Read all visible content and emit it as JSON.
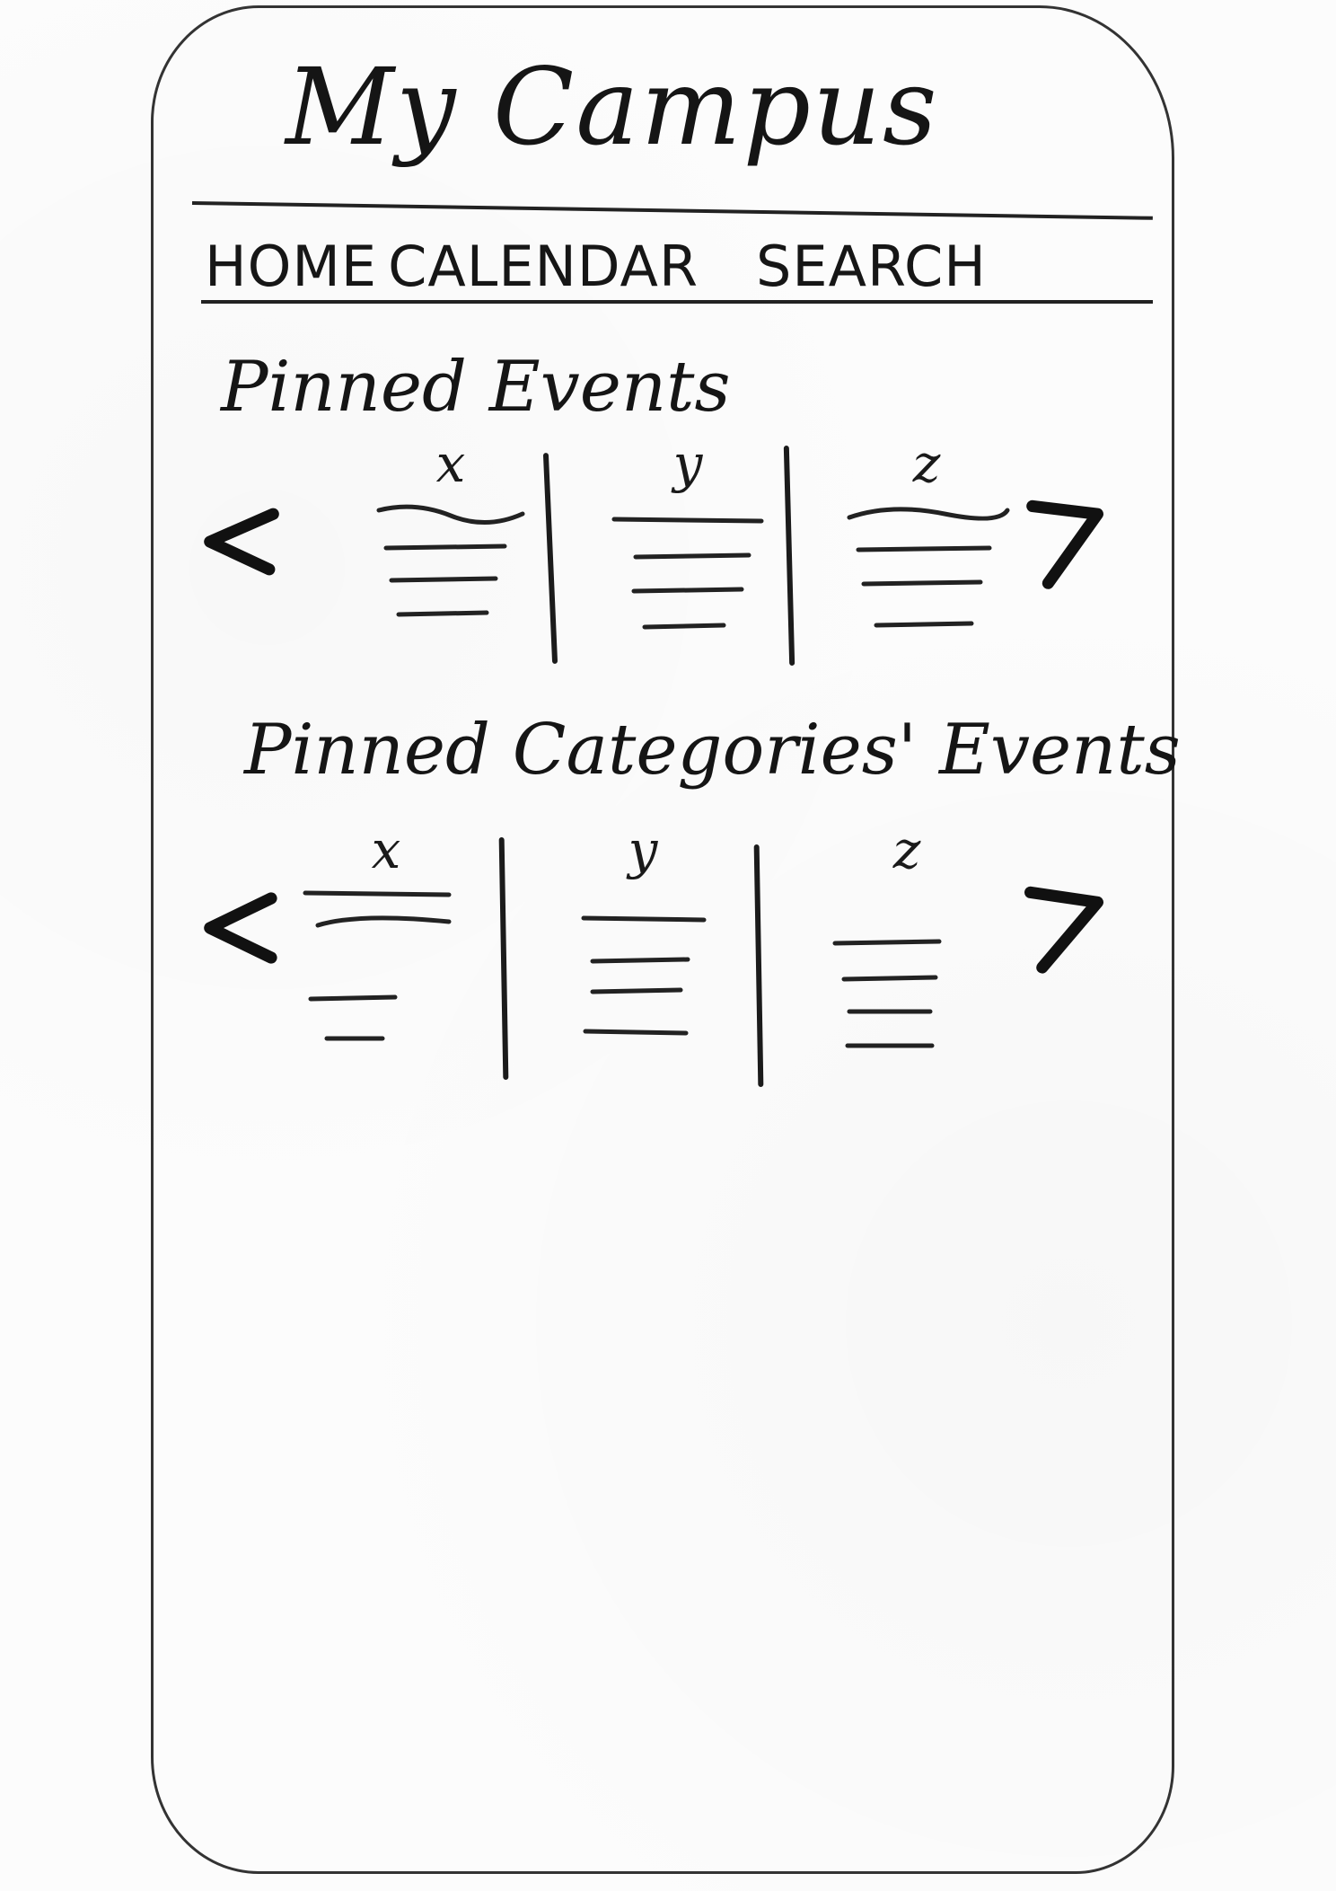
{
  "app": {
    "title": "My Campus"
  },
  "nav": {
    "items": [
      {
        "label": "HOME"
      },
      {
        "label": "CALENDAR"
      },
      {
        "label": "SEARCH"
      }
    ]
  },
  "pinned_events": {
    "title": "Pinned Events",
    "cards": [
      {
        "label": "x"
      },
      {
        "label": "y"
      },
      {
        "label": "z"
      }
    ]
  },
  "pinned_categories": {
    "title": "Pinned Categories' Events",
    "cards": [
      {
        "label": "x"
      },
      {
        "label": "y"
      },
      {
        "label": "z"
      }
    ]
  },
  "colors": {
    "ink": "#151515",
    "paper": "#fcfcfc"
  }
}
